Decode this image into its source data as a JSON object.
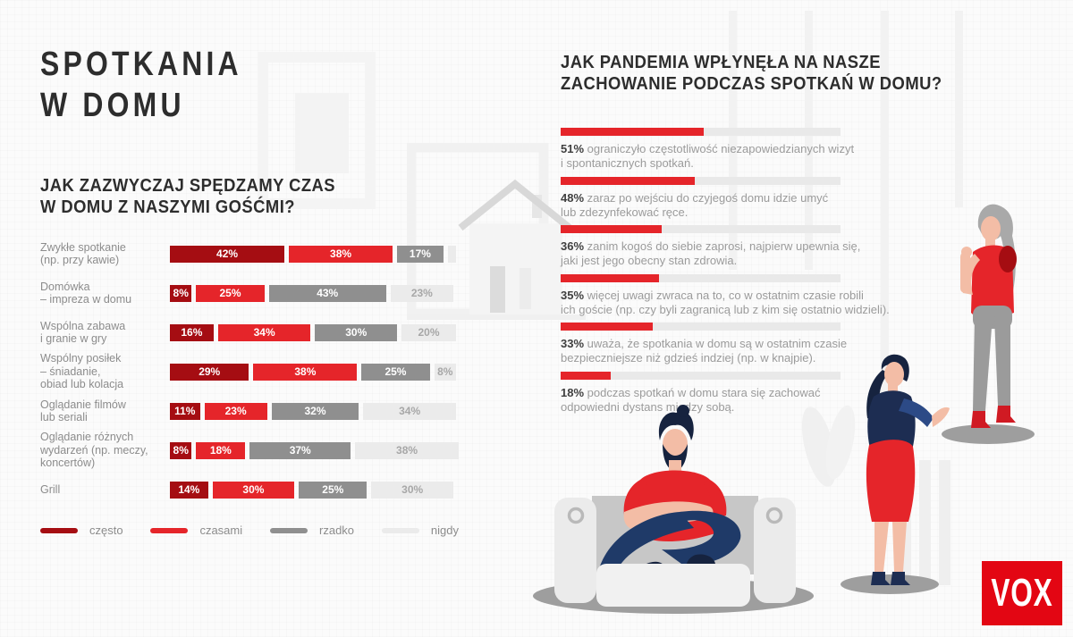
{
  "page": {
    "title": "SPOTKANIA\nW DOMU",
    "brand": "VOX",
    "accent_red": "#e5252a",
    "dark_red": "#a50d12",
    "gray": "#8f8f8f",
    "light_gray": "#ebebeb"
  },
  "chart_data": [
    {
      "type": "bar",
      "orientation": "horizontal-stacked",
      "title": "JAK ZAZWYCZAJ SPĘDZAMY CZAS\nW DOMU Z NASZYMI GOŚĆMI?",
      "unit": "%",
      "xlim": [
        0,
        100
      ],
      "grid": false,
      "legend_position": "bottom",
      "categories": [
        "Zwykłe spotkanie\n(np. przy kawie)",
        "Domówka\n– impreza w domu",
        "Wspólna zabawa\ni granie w gry",
        "Wspólny posiłek\n– śniadanie,\nobiad lub kolacja",
        "Oglądanie filmów\nlub seriali",
        "Oglądanie różnych\nwydarzeń (np. meczy,\nkoncertów)",
        "Grill"
      ],
      "series": [
        {
          "name": "często",
          "color": "#a50d12",
          "label_color": "#ffffff",
          "values": [
            42,
            8,
            16,
            29,
            11,
            8,
            14
          ]
        },
        {
          "name": "czasami",
          "color": "#e5252a",
          "label_color": "#ffffff",
          "values": [
            38,
            25,
            34,
            38,
            23,
            18,
            30
          ]
        },
        {
          "name": "rzadko",
          "color": "#8f8f8f",
          "label_color": "#ffffff",
          "values": [
            17,
            43,
            30,
            25,
            32,
            37,
            25
          ]
        },
        {
          "name": "nigdy",
          "color": "#ebebeb",
          "label_color": "#a7a7a7",
          "values": [
            3,
            23,
            20,
            8,
            34,
            38,
            30
          ]
        }
      ]
    },
    {
      "type": "bar",
      "orientation": "horizontal-progress",
      "title": "JAK PANDEMIA WPŁYNĘŁA NA NASZE\nZACHOWANIE PODCZAS SPOTKAŃ W DOMU?",
      "unit": "%",
      "bar_color": "#e5252a",
      "track_color": "#e9e9e9",
      "xlim": [
        0,
        100
      ],
      "items": [
        {
          "value": 51,
          "text": "ograniczyło częstotliwość niezapowiedzianych wizyt\ni spontanicznych spotkań."
        },
        {
          "value": 48,
          "text": "zaraz po wejściu do czyjegoś domu idzie umyć\nlub zdezynfekować ręce."
        },
        {
          "value": 36,
          "text": "zanim kogoś do siebie zaprosi, najpierw upewnia się,\njaki jest jego obecny stan zdrowia."
        },
        {
          "value": 35,
          "text": "więcej uwagi zwraca na to, co w ostatnim czasie robili\nich goście (np. czy byli zagranicą lub z kim się ostatnio widzieli)."
        },
        {
          "value": 33,
          "text": "uważa, że spotkania w domu są w ostatnim czasie\nbezpieczniejsze niż gdzieś indziej (np. w knajpie)."
        },
        {
          "value": 18,
          "text": "podczas spotkań w domu stara się zachować\nodpowiedni dystans między sobą."
        }
      ]
    }
  ]
}
